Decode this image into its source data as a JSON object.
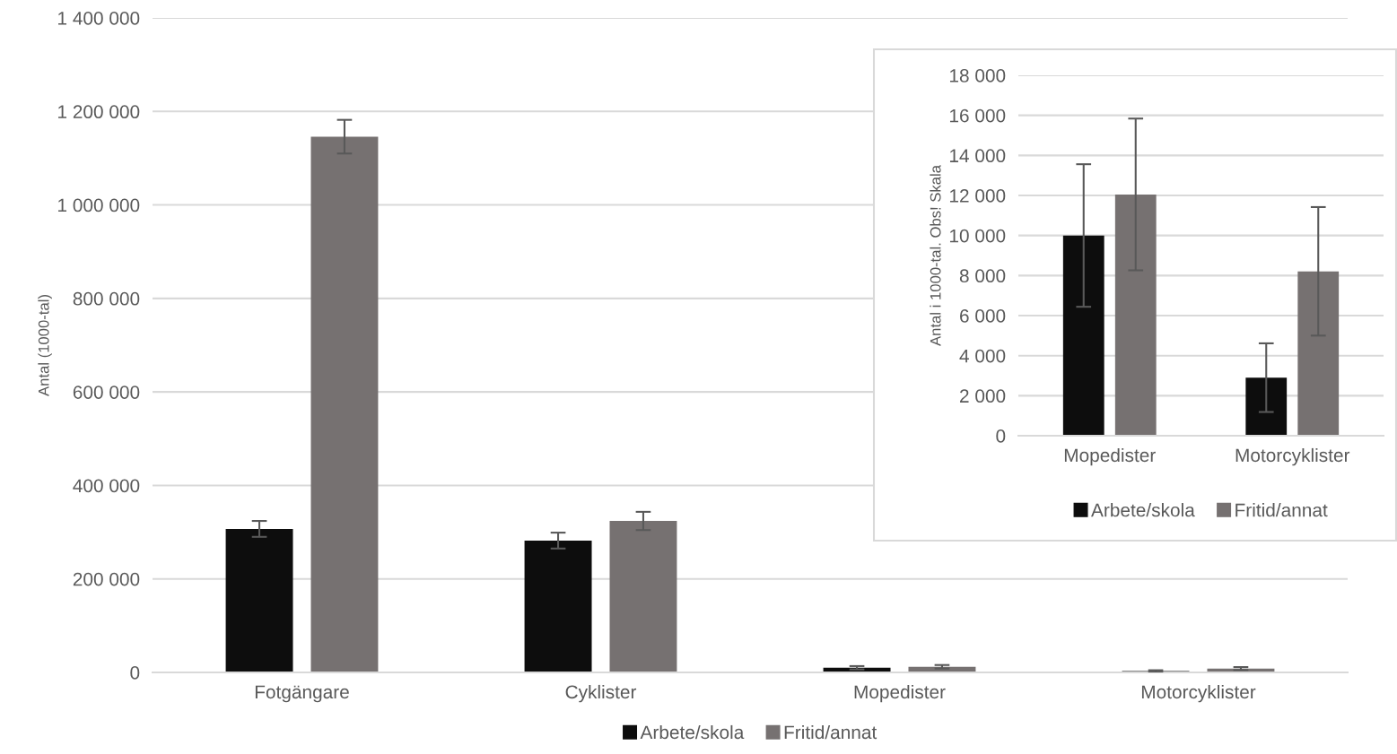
{
  "chart_data": [
    {
      "type": "bar",
      "ylabel": "Antal (1000-tal)",
      "categories": [
        "Fotgängare",
        "Cyklister",
        "Mopedister",
        "Motorcyklister"
      ],
      "series": [
        {
          "name": "Arbete/skola",
          "color": "#0d0d0d",
          "values": [
            307000,
            282000,
            10000,
            2900
          ],
          "errors": [
            17000,
            17000,
            3560,
            1715
          ]
        },
        {
          "name": "Fritid/annat",
          "color": "#767171",
          "values": [
            1146000,
            324000,
            12050,
            8210
          ],
          "errors": [
            36000,
            19500,
            3790,
            3210
          ]
        }
      ],
      "ylim": [
        0,
        1400000
      ],
      "yticks": [
        {
          "value": 0,
          "label": "0"
        },
        {
          "value": 200000,
          "label": "200 000"
        },
        {
          "value": 400000,
          "label": "400 000"
        },
        {
          "value": 600000,
          "label": "600 000"
        },
        {
          "value": 800000,
          "label": "800 000"
        },
        {
          "value": 1000000,
          "label": "1 000 000"
        },
        {
          "value": 1200000,
          "label": "1 200 000"
        },
        {
          "value": 1400000,
          "label": "1 400 000"
        }
      ],
      "grid": "y",
      "legend": "bottom"
    },
    {
      "type": "bar",
      "ylabel": "Antal i 1000-tal. Obs! Skala",
      "categories": [
        "Mopedister",
        "Motorcyklister"
      ],
      "series": [
        {
          "name": "Arbete/skola",
          "color": "#0d0d0d",
          "values": [
            10000,
            2900
          ],
          "errors": [
            3560,
            1715
          ]
        },
        {
          "name": "Fritid/annat",
          "color": "#767171",
          "values": [
            12050,
            8210
          ],
          "errors": [
            3790,
            3210
          ]
        }
      ],
      "ylim": [
        0,
        18000
      ],
      "yticks": [
        {
          "value": 0,
          "label": "0"
        },
        {
          "value": 2000,
          "label": "2 000"
        },
        {
          "value": 4000,
          "label": "4 000"
        },
        {
          "value": 6000,
          "label": "6 000"
        },
        {
          "value": 8000,
          "label": "8 000"
        },
        {
          "value": 10000,
          "label": "10 000"
        },
        {
          "value": 12000,
          "label": "12 000"
        },
        {
          "value": 14000,
          "label": "14 000"
        },
        {
          "value": 16000,
          "label": "16 000"
        },
        {
          "value": 18000,
          "label": "18 000"
        }
      ],
      "grid": "y",
      "legend": "bottom"
    }
  ]
}
